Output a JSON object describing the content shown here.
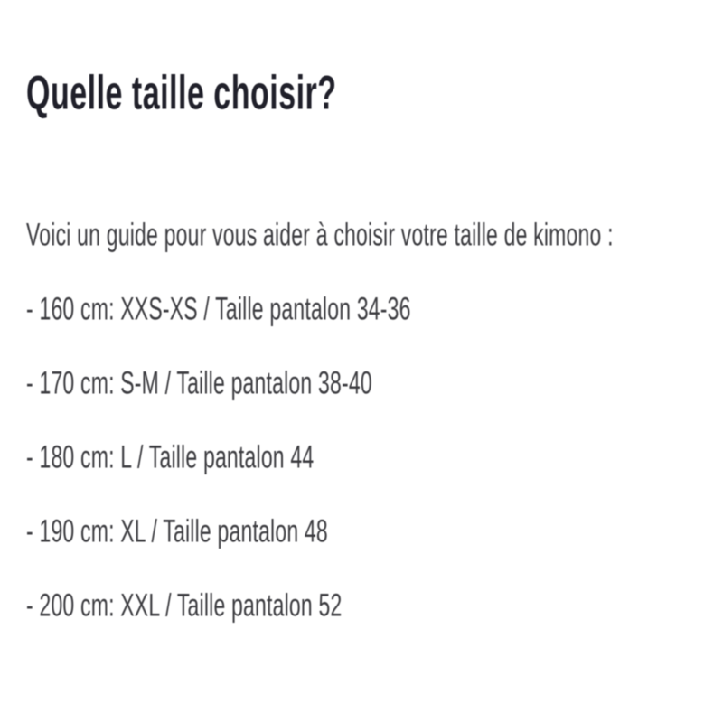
{
  "page": {
    "title": "Quelle taille choisir?",
    "intro": "Voici un guide pour vous aider à choisir votre taille de kimono :",
    "size_guide": {
      "items": [
        {
          "text": "- 160 cm: XXS-XS / Taille pantalon 34-36",
          "height_cm": "160",
          "kimono_size": "XXS-XS",
          "pants_size": "34-36"
        },
        {
          "text": "- 170 cm: S-M / Taille pantalon 38-40",
          "height_cm": "170",
          "kimono_size": "S-M",
          "pants_size": "38-40"
        },
        {
          "text": "- 180 cm: L / Taille pantalon 44",
          "height_cm": "180",
          "kimono_size": "L",
          "pants_size": "44"
        },
        {
          "text": "- 190 cm: XL / Taille pantalon 48",
          "height_cm": "190",
          "kimono_size": "XL",
          "pants_size": "48"
        },
        {
          "text": "- 200 cm: XXL / Taille pantalon 52",
          "height_cm": "200",
          "kimono_size": "XXL",
          "pants_size": "52"
        }
      ]
    },
    "colors": {
      "background": "#ffffff",
      "title_text": "#20202a",
      "body_text": "#3c3c40"
    }
  }
}
